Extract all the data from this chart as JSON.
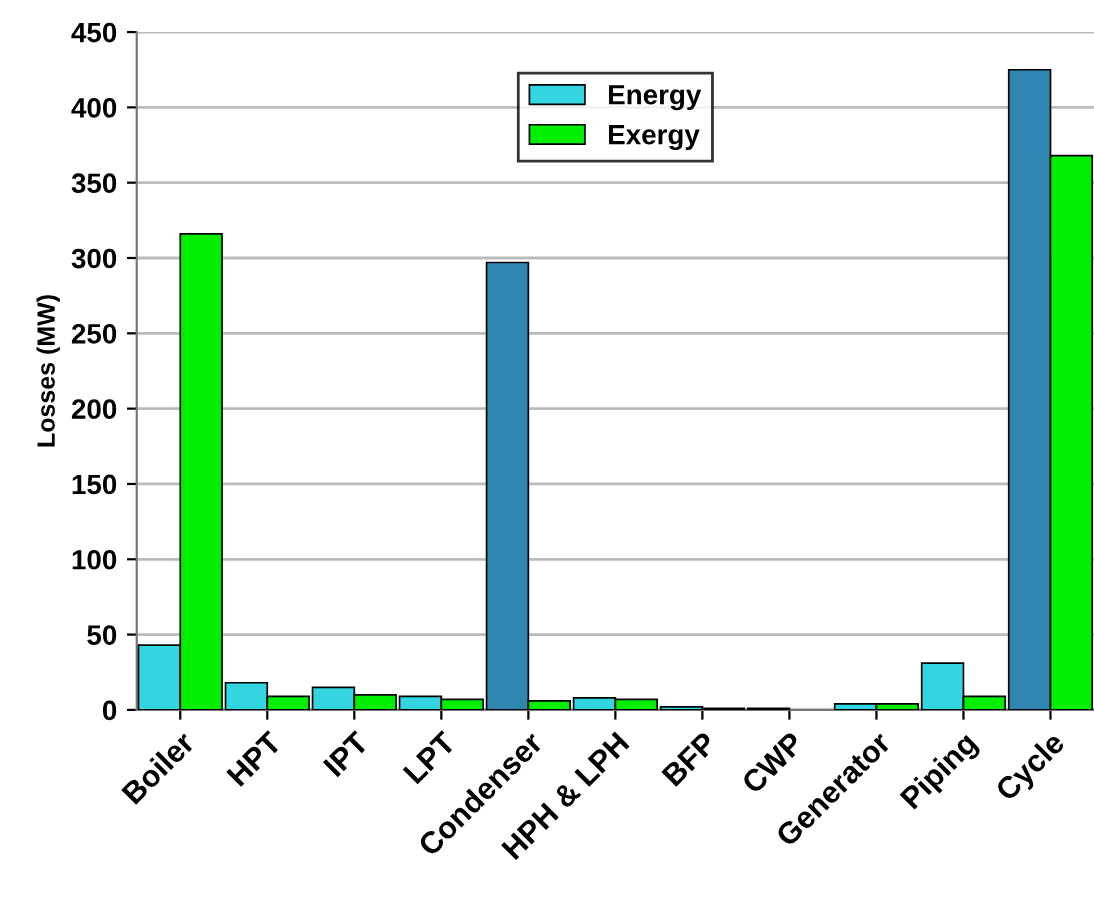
{
  "chart_data": {
    "type": "bar",
    "ylabel": "Losses (MW)",
    "categories": [
      "Boiler",
      "HPT",
      "IPT",
      "LPT",
      "Condenser",
      "HPH & LPH",
      "BFP",
      "CWP",
      "Generator",
      "Piping",
      "Cycle"
    ],
    "series": [
      {
        "name": "Energy",
        "color": "#33d6e0",
        "colors": [
          "#33d6e0",
          "#33d6e0",
          "#33d6e0",
          "#33d6e0",
          "#2f86b0",
          "#33d6e0",
          "#33d6e0",
          "#33d6e0",
          "#33d6e0",
          "#33d6e0",
          "#2f86b0"
        ],
        "values": [
          43,
          18,
          15,
          9,
          297,
          8,
          2,
          1,
          4,
          31,
          425
        ]
      },
      {
        "name": "Exergy",
        "color": "#00ee00",
        "values": [
          316,
          9,
          10,
          7,
          6,
          7,
          1,
          null,
          4,
          9,
          368
        ]
      }
    ],
    "ylim": [
      0,
      450
    ],
    "yticks": [
      0,
      50,
      100,
      150,
      200,
      250,
      300,
      350,
      400,
      450
    ],
    "grid": "y",
    "legend": "top"
  }
}
